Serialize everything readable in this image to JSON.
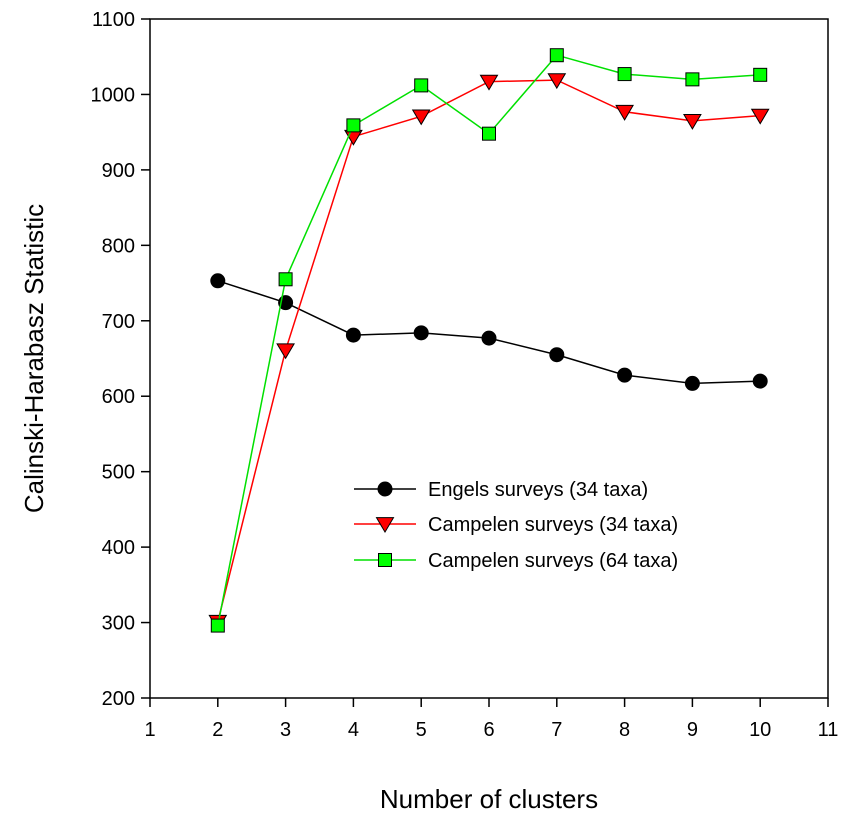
{
  "chart_data": {
    "type": "line",
    "xlabel": "Number of clusters",
    "ylabel": "Calinski-Harabasz Statistic",
    "xlim": [
      1,
      11
    ],
    "ylim": [
      200,
      1100
    ],
    "xticks": [
      1,
      2,
      3,
      4,
      5,
      6,
      7,
      8,
      9,
      10,
      11
    ],
    "yticks": [
      200,
      300,
      400,
      500,
      600,
      700,
      800,
      900,
      1000,
      1100
    ],
    "grid": false,
    "legend_position": "center-right",
    "x": [
      2,
      3,
      4,
      5,
      6,
      7,
      8,
      9,
      10
    ],
    "series": [
      {
        "name": "Engels surveys (34 taxa)",
        "color": "#000000",
        "marker_fill": "#000000",
        "marker": "circle",
        "values": [
          753,
          724,
          681,
          684,
          677,
          655,
          628,
          617,
          620
        ]
      },
      {
        "name": "Campelen surveys (34 taxa)",
        "color": "#ff0000",
        "marker_fill": "#ff0000",
        "marker": "triangle-down",
        "values": [
          301,
          661,
          944,
          971,
          1017,
          1019,
          977,
          965,
          972
        ]
      },
      {
        "name": "Campelen surveys (64 taxa)",
        "color": "#00e000",
        "marker_fill": "#00ff00",
        "marker": "square",
        "values": [
          296,
          755,
          959,
          1012,
          948,
          1052,
          1027,
          1020,
          1026
        ]
      }
    ]
  }
}
